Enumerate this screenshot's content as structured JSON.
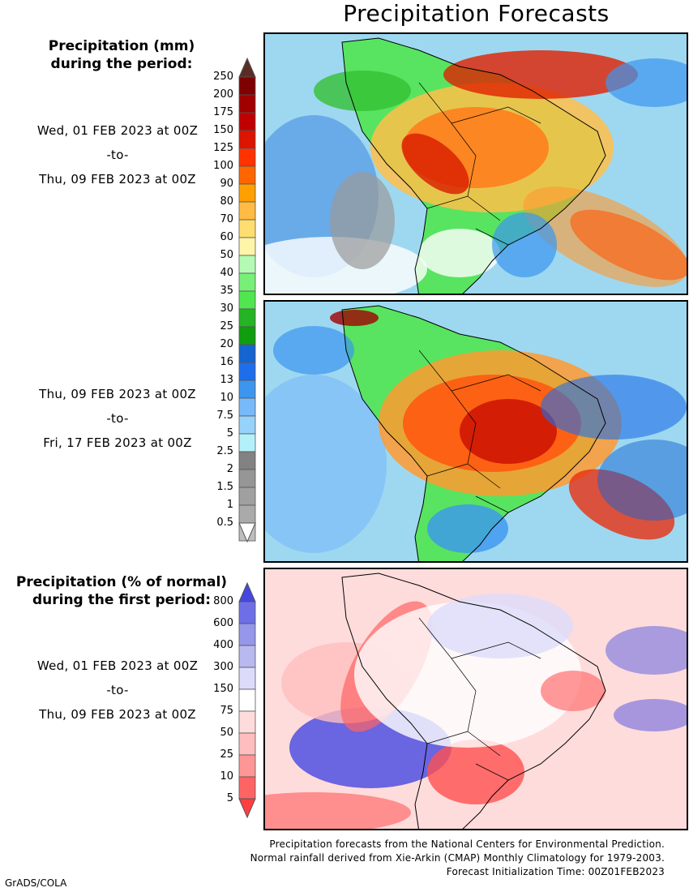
{
  "title": "Precipitation Forecasts",
  "legend_mm": {
    "header": [
      "Precipitation (mm)",
      "during the period:"
    ],
    "labels": [
      "250",
      "200",
      "175",
      "150",
      "125",
      "100",
      "90",
      "80",
      "70",
      "60",
      "50",
      "40",
      "35",
      "30",
      "25",
      "20",
      "16",
      "13",
      "10",
      "7.5",
      "5",
      "2.5",
      "2",
      "1.5",
      "1",
      "0.5"
    ],
    "colors": [
      "#7f0000",
      "#a00000",
      "#c00000",
      "#dc1400",
      "#ff3300",
      "#ff6600",
      "#ffa000",
      "#ffbb44",
      "#ffde70",
      "#fff5a8",
      "#b4fab4",
      "#78f078",
      "#50e650",
      "#24b424",
      "#0e9e0e",
      "#1464d2",
      "#1e6eeb",
      "#3c96f0",
      "#78b9fa",
      "#96d2fa",
      "#b4f0fa",
      "#828282",
      "#969696",
      "#a0a0a0",
      "#aaaaaa",
      "#bebebe"
    ],
    "top_color": "#5a2d24",
    "bottom_color": "#ffffff"
  },
  "period1": {
    "start": "Wed, 01 FEB 2023 at 00Z",
    "sep": "-to-",
    "end": "Thu, 09 FEB 2023 at 00Z"
  },
  "period2": {
    "start": "Thu, 09 FEB 2023 at 00Z",
    "sep": "-to-",
    "end": "Fri, 17 FEB 2023 at 00Z"
  },
  "legend_pct": {
    "header": [
      "Precipitation (% of normal)",
      "during the first period:"
    ],
    "labels": [
      "800",
      "600",
      "400",
      "300",
      "150",
      "75",
      "50",
      "25",
      "10",
      "5"
    ],
    "colors": [
      "#6e6ee6",
      "#9696eb",
      "#b9b9f0",
      "#dcdcfa",
      "#ffffff",
      "#ffdcdc",
      "#ffbebe",
      "#ff9696",
      "#ff6464"
    ],
    "top_color": "#4646e0",
    "bottom_color": "#ff4040"
  },
  "period3": {
    "start": "Wed, 01 FEB 2023 at 00Z",
    "sep": "-to-",
    "end": "Thu, 09 FEB 2023 at 00Z"
  },
  "footer": [
    "Precipitation forecasts from the National Centers for Environmental Prediction.",
    "Normal rainfall derived from Xie-Arkin (CMAP) Monthly Climatology for 1979-2003.",
    "Forecast Initialization Time: 00Z01FEB2023"
  ],
  "credit": "GrADS/COLA"
}
